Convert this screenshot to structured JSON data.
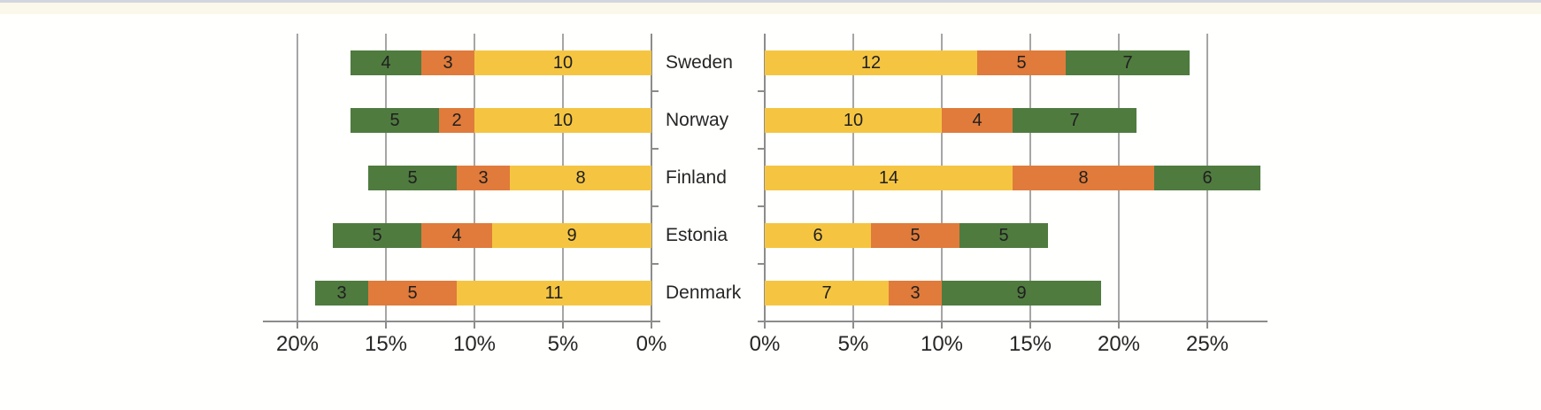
{
  "page": {
    "background": "#fffffd",
    "top_border_color": "#d2d5de",
    "top_band_color": "rgba(247,243,222,0.6)"
  },
  "colors": {
    "green": "#4f7b3f",
    "orange": "#e07b3b",
    "yellow": "#f5c542",
    "gridline": "#a6a6a6",
    "axis": "#8c8c8c",
    "value_text": "#1f1f1f",
    "label_text": "#262626"
  },
  "categories": [
    "Sweden",
    "Norway",
    "Finland",
    "Estonia",
    "Denmark"
  ],
  "chart_data": [
    {
      "id": "left",
      "type": "bar",
      "stacked": true,
      "orientation": "horizontal",
      "direction": "right-to-left",
      "grid": true,
      "legend": "none",
      "title": "",
      "xlabel": "",
      "ylabel": "",
      "xlim": [
        0,
        22
      ],
      "categories": [
        "Sweden",
        "Norway",
        "Finland",
        "Estonia",
        "Denmark"
      ],
      "axis_ticks": [
        {
          "label": "20%",
          "value": 20
        },
        {
          "label": "15%",
          "value": 15
        },
        {
          "label": "10%",
          "value": 10
        },
        {
          "label": "5%",
          "value": 5
        },
        {
          "label": "0%",
          "value": 0
        }
      ],
      "series": [
        {
          "name": "green",
          "values": [
            4,
            5,
            5,
            5,
            3
          ]
        },
        {
          "name": "orange",
          "values": [
            3,
            2,
            3,
            4,
            5
          ]
        },
        {
          "name": "yellow",
          "values": [
            10,
            10,
            8,
            9,
            11
          ]
        }
      ],
      "rows": [
        {
          "category": "Sweden",
          "segments": [
            {
              "series": "green",
              "value": 4
            },
            {
              "series": "orange",
              "value": 3
            },
            {
              "series": "yellow",
              "value": 10
            }
          ]
        },
        {
          "category": "Norway",
          "segments": [
            {
              "series": "green",
              "value": 5
            },
            {
              "series": "orange",
              "value": 2
            },
            {
              "series": "yellow",
              "value": 10
            }
          ]
        },
        {
          "category": "Finland",
          "segments": [
            {
              "series": "green",
              "value": 5
            },
            {
              "series": "orange",
              "value": 3
            },
            {
              "series": "yellow",
              "value": 8
            }
          ]
        },
        {
          "category": "Estonia",
          "segments": [
            {
              "series": "green",
              "value": 5
            },
            {
              "series": "orange",
              "value": 4
            },
            {
              "series": "yellow",
              "value": 9
            }
          ]
        },
        {
          "category": "Denmark",
          "segments": [
            {
              "series": "green",
              "value": 3
            },
            {
              "series": "orange",
              "value": 5
            },
            {
              "series": "yellow",
              "value": 11
            }
          ]
        }
      ]
    },
    {
      "id": "right",
      "type": "bar",
      "stacked": true,
      "orientation": "horizontal",
      "direction": "left-to-right",
      "grid": true,
      "legend": "none",
      "title": "",
      "xlabel": "",
      "ylabel": "",
      "xlim": [
        0,
        28.4
      ],
      "categories": [
        "Sweden",
        "Norway",
        "Finland",
        "Estonia",
        "Denmark"
      ],
      "axis_ticks": [
        {
          "label": "0%",
          "value": 0
        },
        {
          "label": "5%",
          "value": 5
        },
        {
          "label": "10%",
          "value": 10
        },
        {
          "label": "15%",
          "value": 15
        },
        {
          "label": "20%",
          "value": 20
        },
        {
          "label": "25%",
          "value": 25
        }
      ],
      "series": [
        {
          "name": "yellow",
          "values": [
            12,
            10,
            14,
            6,
            7
          ]
        },
        {
          "name": "orange",
          "values": [
            5,
            4,
            8,
            5,
            3
          ]
        },
        {
          "name": "green",
          "values": [
            7,
            7,
            6,
            5,
            9
          ]
        }
      ],
      "rows": [
        {
          "category": "Sweden",
          "segments": [
            {
              "series": "yellow",
              "value": 12
            },
            {
              "series": "orange",
              "value": 5
            },
            {
              "series": "green",
              "value": 7
            }
          ]
        },
        {
          "category": "Norway",
          "segments": [
            {
              "series": "yellow",
              "value": 10
            },
            {
              "series": "orange",
              "value": 4
            },
            {
              "series": "green",
              "value": 7
            }
          ]
        },
        {
          "category": "Finland",
          "segments": [
            {
              "series": "yellow",
              "value": 14
            },
            {
              "series": "orange",
              "value": 8
            },
            {
              "series": "green",
              "value": 6
            }
          ]
        },
        {
          "category": "Estonia",
          "segments": [
            {
              "series": "yellow",
              "value": 6
            },
            {
              "series": "orange",
              "value": 5
            },
            {
              "series": "green",
              "value": 5
            }
          ]
        },
        {
          "category": "Denmark",
          "segments": [
            {
              "series": "yellow",
              "value": 7
            },
            {
              "series": "orange",
              "value": 3
            },
            {
              "series": "green",
              "value": 9
            }
          ]
        }
      ]
    }
  ]
}
